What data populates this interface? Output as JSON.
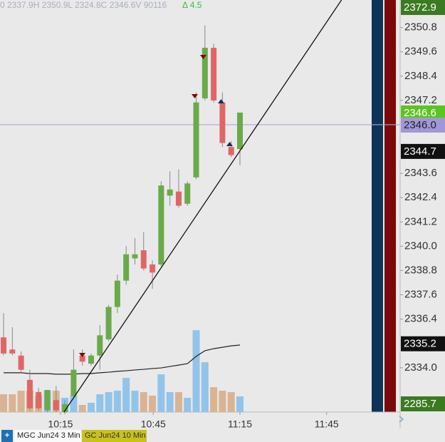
{
  "chart_data": {
    "type": "candlestick",
    "header": "0 2337.9H 2350.9L 2324.8C 2346.6V 90116",
    "change": "Δ 4.5",
    "open": [
      2335.5,
      2334.9,
      2334.6,
      2333.4,
      2332.8,
      2331.9,
      2332.4,
      2331.8,
      2332.6,
      2334.6,
      2334.2,
      2334.6,
      2335.4,
      2337.0,
      2338.3,
      2339.4,
      2339.8,
      2339.1,
      2339.1,
      2342.5,
      2342.7,
      2342.1,
      2343.4,
      2347.3,
      2349.8,
      2347.1,
      2344.9,
      2344.8
    ],
    "high": [
      2336.7,
      2336.0,
      2334.8,
      2333.9,
      2333.0,
      2332.9,
      2333.1,
      2332.4,
      2334.9,
      2334.9,
      2334.7,
      2336.1,
      2337.1,
      2338.6,
      2340.0,
      2340.4,
      2340.7,
      2339.3,
      2343.2,
      2343.7,
      2343.8,
      2343.2,
      2347.6,
      2350.9,
      2350.0,
      2347.6,
      2345.2,
      2346.6
    ],
    "low": [
      2334.6,
      2334.6,
      2333.8,
      2331.9,
      2331.9,
      2331.8,
      2331.8,
      2331.7,
      2332.5,
      2334.1,
      2334.1,
      2333.9,
      2335.3,
      2336.7,
      2338.1,
      2339.1,
      2338.8,
      2337.9,
      2339.0,
      2342.0,
      2341.9,
      2342.0,
      2343.3,
      2347.2,
      2347.1,
      2344.9,
      2344.4,
      2344.0
    ],
    "close": [
      2334.7,
      2334.7,
      2333.9,
      2332.0,
      2332.0,
      2332.9,
      2331.9,
      2332.2,
      2333.9,
      2334.3,
      2334.6,
      2335.6,
      2337.0,
      2338.3,
      2339.6,
      2339.6,
      2338.9,
      2338.7,
      2343.0,
      2342.8,
      2342.0,
      2343.1,
      2347.1,
      2349.8,
      2347.2,
      2345.1,
      2344.5,
      2346.6
    ],
    "volume": [
      547,
      547,
      656,
      656,
      503,
      656,
      656,
      437,
      503,
      219,
      284,
      547,
      612,
      656,
      1049,
      656,
      612,
      503,
      1159,
      612,
      612,
      437,
      2514,
      1530,
      765,
      656,
      612,
      481
    ],
    "moving_average": [
      2333.75,
      2333.75,
      2333.75,
      2333.71,
      2333.71,
      2333.71,
      2333.68,
      2333.68,
      2333.68,
      2333.71,
      2333.71,
      2333.75,
      2333.78,
      2333.82,
      2333.85,
      2333.89,
      2333.92,
      2333.96,
      2333.99,
      2334.06,
      2334.13,
      2334.2,
      2334.56,
      2334.84,
      2334.94,
      2335.01,
      2335.08,
      2335.12
    ],
    "trendline": {
      "x": [
        6.9,
        38.6
      ],
      "y": [
        2331.81,
        2352.16
      ]
    },
    "reference_line": 2346,
    "up_color": "#6aaa4a",
    "down_color": "#e06666",
    "up_volume_color": "#92c4ea",
    "down_volume_color": "#d9b493",
    "ma_color": "#222222",
    "trendline_color": "#111111",
    "reference_color": "#aaa6dd",
    "xlim": [
      -0.41,
      45.3
    ],
    "ylim": [
      2331.81,
      2352.16
    ],
    "volume_lim": [
      0,
      3000
    ],
    "xticks": [
      {
        "value": 6.5,
        "label": "10:15"
      },
      {
        "value": 17.1,
        "label": "10:45"
      },
      {
        "value": 27,
        "label": "11:15"
      },
      {
        "value": 36.9,
        "label": "11:45"
      }
    ],
    "yticks": [
      2350.8,
      2349.6,
      2348.4,
      2347.2,
      2343.6,
      2342.4,
      2341.2,
      {
        "value": 2340,
        "label": "2340.0"
      },
      2338.8,
      2337.6,
      2336.4,
      {
        "value": 2334,
        "label": "2334.0"
      }
    ],
    "price_labels": [
      {
        "value": 2372.9,
        "color": "#3c7a22",
        "text_color": "#ffffff"
      },
      {
        "value": 2346.6,
        "color": "#5cc41e",
        "text_color": "#ffffff"
      },
      {
        "value": 2346,
        "label": "2346.0",
        "color": "#a197d6",
        "text_color": "#222222"
      },
      {
        "value": 2344.7,
        "color": "#111111",
        "text_color": "#ffffff"
      },
      {
        "value": 2335.2,
        "color": "#111111",
        "text_color": "#ffffff"
      },
      {
        "value": 2285.7,
        "color": "#3c7a22",
        "text_color": "#ffffff"
      }
    ]
  },
  "tabs": [
    "MGC Jun24 3 Min",
    "GC Jun24 10 Min"
  ]
}
